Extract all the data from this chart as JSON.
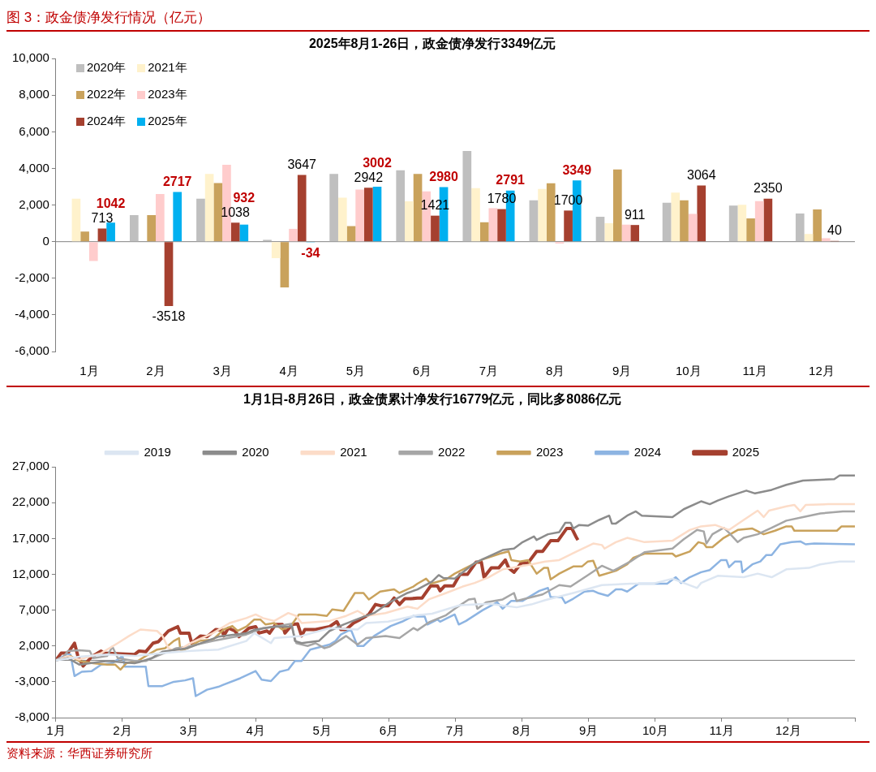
{
  "chart_data": [
    {
      "type": "bar",
      "title": "2025年8月1-26日，政金债净发行3349亿元",
      "annotations": [
        "图 3：政金债净发行情况（亿元）"
      ],
      "categories": [
        "1月",
        "2月",
        "3月",
        "4月",
        "5月",
        "6月",
        "7月",
        "8月",
        "9月",
        "10月",
        "11月",
        "12月"
      ],
      "series": [
        {
          "name": "2020年",
          "color": "#bfbfbf",
          "values": [
            null,
            1450,
            2350,
            100,
            3700,
            3900,
            4950,
            2260,
            1360,
            2130,
            1970,
            1540
          ]
        },
        {
          "name": "2021年",
          "color": "#fff2cc",
          "values": [
            2350,
            null,
            3700,
            -900,
            2400,
            2200,
            2930,
            2880,
            1010,
            2680,
            2020,
            420
          ]
        },
        {
          "name": "2022年",
          "color": "#c9a25c",
          "values": [
            550,
            1450,
            3200,
            -2500,
            850,
            3700,
            1060,
            3190,
            3940,
            2260,
            1270,
            1760
          ]
        },
        {
          "name": "2023年",
          "color": "#ffcccc",
          "values": [
            -1050,
            2600,
            4200,
            700,
            2850,
            2750,
            1830,
            -100,
            930,
            1520,
            2210,
            190
          ]
        },
        {
          "name": "2024年",
          "color": "#a5402f",
          "values": [
            713,
            -3518,
            1038,
            3647,
            2942,
            1421,
            1780,
            1700,
            911,
            3064,
            2350,
            40
          ],
          "value_labels": [
            "713",
            "-3518",
            "1038",
            "3647",
            "2942",
            "1421",
            "1780",
            "1700",
            "911",
            "3064",
            "2350",
            "40"
          ]
        },
        {
          "name": "2025年",
          "color": "#00b0f0",
          "values": [
            1042,
            2717,
            932,
            -34,
            3002,
            2980,
            2791,
            3349,
            null,
            null,
            null,
            null
          ],
          "value_labels": [
            "1042",
            "2717",
            "932",
            "-34",
            "3002",
            "2980",
            "2791",
            "3349",
            null,
            null,
            null,
            null
          ]
        }
      ],
      "ylim": [
        -6000,
        10000
      ],
      "yticks": [
        {
          "value": -6000,
          "label": "-6,000"
        },
        {
          "value": -4000,
          "label": "-4,000"
        },
        {
          "value": -2000,
          "label": "-2,000"
        },
        0,
        {
          "value": 2000,
          "label": "2,000"
        },
        {
          "value": 4000,
          "label": "4,000"
        },
        {
          "value": 6000,
          "label": "6,000"
        },
        {
          "value": 8000,
          "label": "8,000"
        },
        {
          "value": 10000,
          "label": "10,000"
        }
      ],
      "ref_lines": [
        {
          "axis": "y",
          "value": 0,
          "color": "#808080"
        }
      ],
      "grid": false,
      "legend": "top left"
    },
    {
      "type": "line",
      "title": "1月1日-8月26日，政金债累计净发行16779亿元，同比多8086亿元",
      "annotations": [
        "资料来源：华西证券研究所"
      ],
      "series": [
        {
          "name": "2019",
          "color": "#dce6f2",
          "x": [
            1.0,
            1.35,
            1.77,
            2.18,
            2.6,
            2.98,
            3.44,
            3.86,
            3.98,
            4.23,
            4.28,
            4.69,
            5.11,
            5.53,
            5.66,
            5.99,
            6.43,
            6.65,
            7.07,
            7.5,
            7.92,
            8.14,
            8.35,
            8.77,
            9.2,
            9.63,
            9.97,
            10.26,
            10.63,
            10.69,
            10.94,
            11.33,
            11.54,
            11.75,
            11.97,
            12.31,
            12.48,
            12.77,
            13.0
          ],
          "values": [
            0,
            500,
            800,
            600,
            1000,
            1300,
            1500,
            2700,
            3800,
            2400,
            3100,
            3400,
            4500,
            4300,
            5200,
            5400,
            6300,
            6500,
            7700,
            7900,
            7400,
            7800,
            8400,
            9400,
            10500,
            10700,
            10700,
            11400,
            10100,
            10800,
            11800,
            11600,
            12100,
            11600,
            12700,
            12900,
            13400,
            13800,
            13800
          ]
        },
        {
          "name": "2020",
          "color": "#8c8c8c",
          "x": [
            1.0,
            1.18,
            1.35,
            1.51,
            1.77,
            2.18,
            2.27,
            2.44,
            2.6,
            2.98,
            3.44,
            3.86,
            4.0,
            4.28,
            4.55,
            4.59,
            4.69,
            4.95,
            5.11,
            5.32,
            5.57,
            5.78,
            6.03,
            6.28,
            6.43,
            6.65,
            6.75,
            6.82,
            6.99,
            7.29,
            7.71,
            7.88,
            8.01,
            8.18,
            8.22,
            8.39,
            8.56,
            8.65,
            8.73,
            8.77,
            8.86,
            8.99,
            9.16,
            9.31,
            9.35,
            9.41,
            9.58,
            9.71,
            9.8,
            10.26,
            10.43,
            10.69,
            10.82,
            10.94,
            11.11,
            11.37,
            11.5,
            11.75,
            11.97,
            12.22,
            12.69,
            12.77,
            13.0
          ],
          "values": [
            0,
            300,
            -600,
            -400,
            -100,
            -400,
            -200,
            300,
            1200,
            1700,
            3300,
            3800,
            4300,
            4700,
            4700,
            2700,
            2400,
            2700,
            4100,
            5000,
            5900,
            6600,
            8200,
            9400,
            9900,
            11000,
            11900,
            11500,
            11400,
            13600,
            15400,
            15600,
            16500,
            17300,
            16800,
            17600,
            17900,
            19200,
            19200,
            18400,
            18900,
            18800,
            19600,
            20200,
            19100,
            19100,
            20200,
            20800,
            20200,
            20000,
            21100,
            22200,
            21800,
            22300,
            22900,
            23700,
            23300,
            23800,
            24500,
            25100,
            25300,
            25800,
            25800
          ]
        },
        {
          "name": "2021",
          "color": "#fcdcc8",
          "x": [
            1.0,
            1.18,
            1.35,
            1.68,
            1.93,
            2.1,
            2.27,
            2.52,
            2.6,
            2.69,
            2.81,
            3.02,
            3.36,
            3.61,
            3.86,
            4.0,
            4.11,
            4.28,
            4.49,
            4.61,
            4.69,
            5.11,
            5.36,
            5.53,
            5.66,
            5.95,
            6.28,
            6.43,
            6.6,
            6.86,
            7.11,
            7.29,
            7.5,
            7.71,
            8.14,
            8.35,
            8.56,
            8.82,
            9.07,
            9.2,
            9.24,
            9.41,
            9.58,
            9.84,
            10.26,
            10.52,
            10.69,
            10.9,
            11.11,
            11.33,
            11.54,
            11.63,
            11.71,
            11.97,
            12.09,
            12.18,
            12.26,
            12.6,
            13.0
          ],
          "values": [
            0,
            600,
            100,
            1000,
            2400,
            3400,
            4300,
            4100,
            3400,
            1700,
            1200,
            2400,
            3800,
            5200,
            5900,
            6400,
            5900,
            5500,
            6600,
            6200,
            5200,
            5500,
            6200,
            6900,
            6200,
            6600,
            7500,
            7200,
            8500,
            9400,
            10300,
            10800,
            11600,
            12700,
            13400,
            13800,
            14000,
            15200,
            16300,
            16100,
            15600,
            16500,
            17100,
            16500,
            16700,
            18200,
            18700,
            18900,
            18200,
            19600,
            20900,
            20000,
            20900,
            21500,
            21700,
            20800,
            21700,
            21800,
            21800
          ]
        },
        {
          "name": "2022",
          "color": "#a6a6a6",
          "x": [
            1.0,
            1.1,
            1.18,
            1.35,
            1.51,
            1.56,
            1.77,
            1.85,
            1.93,
            2.18,
            2.35,
            2.52,
            2.81,
            2.98,
            3.36,
            3.86,
            4.11,
            4.28,
            4.53,
            4.61,
            4.78,
            4.9,
            5.03,
            5.11,
            5.36,
            5.53,
            5.66,
            5.95,
            6.16,
            6.37,
            6.43,
            6.6,
            6.86,
            6.99,
            7.2,
            7.29,
            7.33,
            7.46,
            7.71,
            7.88,
            7.92,
            8.05,
            8.31,
            8.56,
            8.73,
            8.99,
            9.2,
            9.37,
            9.63,
            9.84,
            10.26,
            10.43,
            10.63,
            10.73,
            10.77,
            10.86,
            11.03,
            11.11,
            11.24,
            11.33,
            11.54,
            11.75,
            11.97,
            12.22,
            12.48,
            12.82,
            13.0
          ],
          "values": [
            0,
            300,
            1300,
            1400,
            1300,
            300,
            600,
            1900,
            300,
            -100,
            -100,
            600,
            1700,
            1900,
            2700,
            3600,
            4500,
            4700,
            5100,
            2400,
            2000,
            2400,
            1700,
            1900,
            3400,
            2200,
            3100,
            3400,
            3100,
            4500,
            4200,
            5300,
            6300,
            7200,
            8500,
            8600,
            7200,
            8100,
            8500,
            9400,
            8300,
            8600,
            9200,
            10500,
            10300,
            11900,
            13200,
            12500,
            13800,
            15100,
            15600,
            16900,
            18200,
            18000,
            16300,
            17600,
            18500,
            17800,
            16500,
            17100,
            17600,
            18500,
            19500,
            20000,
            20500,
            20800,
            20800
          ]
        },
        {
          "name": "2023",
          "color": "#c9a25c",
          "x": [
            1.0,
            1.1,
            1.22,
            1.35,
            1.56,
            1.77,
            1.89,
            1.97,
            2.06,
            2.23,
            2.35,
            2.52,
            2.64,
            2.77,
            2.85,
            2.87,
            2.98,
            3.15,
            3.36,
            3.52,
            3.65,
            3.73,
            3.86,
            3.98,
            4.07,
            4.15,
            4.28,
            4.4,
            4.53,
            4.65,
            4.9,
            5.07,
            5.15,
            5.32,
            5.49,
            5.62,
            5.7,
            5.87,
            6.08,
            6.16,
            6.37,
            6.43,
            6.56,
            6.63,
            6.86,
            6.99,
            7.2,
            7.41,
            7.67,
            7.8,
            7.84,
            7.97,
            8.09,
            8.22,
            8.33,
            8.39,
            8.43,
            8.56,
            8.77,
            8.9,
            8.99,
            9.07,
            9.16,
            9.41,
            9.58,
            9.67,
            9.84,
            10.26,
            10.31,
            10.52,
            10.65,
            10.73,
            10.77,
            10.86,
            11.03,
            11.24,
            11.46,
            11.63,
            11.8,
            11.97,
            12.05,
            12.09,
            12.73,
            12.8,
            13.0
          ],
          "values": [
            0,
            300,
            600,
            -100,
            -400,
            -600,
            -600,
            -1300,
            -400,
            -100,
            600,
            1500,
            1700,
            2700,
            3100,
            1300,
            1700,
            2700,
            2900,
            4300,
            4800,
            4100,
            4700,
            5700,
            5700,
            5000,
            5200,
            4300,
            4800,
            6400,
            6400,
            6200,
            7100,
            6900,
            9400,
            9400,
            8500,
            9600,
            9900,
            9400,
            10300,
            10700,
            11400,
            10700,
            11300,
            12100,
            13100,
            14100,
            14900,
            15200,
            14000,
            13800,
            14000,
            12100,
            12900,
            12900,
            11300,
            12100,
            13100,
            13100,
            13800,
            13900,
            11800,
            12500,
            13400,
            14300,
            14900,
            14900,
            14500,
            15200,
            16500,
            16300,
            15800,
            15800,
            17100,
            18200,
            18400,
            17600,
            18100,
            18700,
            18700,
            18100,
            18100,
            18700,
            18700
          ]
        },
        {
          "name": "2024",
          "color": "#8db4e2",
          "x": [
            1.0,
            1.16,
            1.22,
            1.28,
            1.39,
            1.54,
            1.68,
            1.85,
            2.0,
            2.04,
            2.35,
            2.39,
            2.6,
            2.77,
            2.94,
            3.06,
            3.1,
            3.27,
            3.44,
            3.52,
            3.77,
            4.0,
            4.09,
            4.23,
            4.36,
            4.49,
            4.59,
            4.69,
            4.82,
            5.11,
            5.2,
            5.28,
            5.43,
            5.53,
            5.62,
            5.78,
            6.03,
            6.2,
            6.37,
            6.43,
            6.54,
            6.58,
            6.73,
            6.77,
            6.99,
            7.05,
            7.16,
            7.41,
            7.63,
            7.71,
            7.84,
            8.01,
            8.26,
            8.39,
            8.43,
            8.6,
            8.65,
            8.77,
            8.94,
            9.07,
            9.14,
            9.29,
            9.41,
            9.5,
            9.58,
            9.75,
            10.18,
            10.31,
            10.39,
            10.52,
            10.69,
            10.82,
            10.99,
            11.07,
            11.11,
            11.2,
            11.29,
            11.31,
            11.46,
            11.58,
            11.67,
            11.75,
            11.88,
            12.05,
            12.18,
            12.26,
            12.39,
            13.0
          ],
          "values": [
            0,
            800,
            800,
            -2200,
            -1600,
            -1500,
            -600,
            -400,
            600,
            -900,
            -900,
            -3600,
            -3600,
            -3000,
            -2800,
            -2500,
            -5000,
            -4100,
            -3700,
            -3400,
            -2500,
            -1500,
            -2700,
            -2900,
            -1600,
            -1300,
            -100,
            -100,
            1500,
            2200,
            2700,
            3600,
            4300,
            2000,
            2000,
            3400,
            4800,
            5400,
            6200,
            6100,
            6100,
            5000,
            5700,
            5400,
            6400,
            5000,
            5500,
            7000,
            8100,
            7200,
            8300,
            8300,
            9700,
            10100,
            8800,
            8800,
            8000,
            8600,
            9600,
            9700,
            9400,
            9000,
            9900,
            9900,
            9600,
            10700,
            10700,
            11600,
            10800,
            11600,
            12300,
            12600,
            14000,
            14000,
            13000,
            13800,
            13800,
            12300,
            13400,
            13800,
            14700,
            14700,
            16200,
            16500,
            16600,
            16200,
            16300,
            16200
          ]
        },
        {
          "name": "2025",
          "color": "#a5402f",
          "x": [
            1.0,
            1.08,
            1.18,
            1.28,
            1.33,
            1.41,
            1.54,
            1.68,
            1.72,
            2.18,
            2.25,
            2.35,
            2.46,
            2.54,
            2.69,
            2.83,
            2.87,
            3.0,
            3.04,
            3.17,
            3.27,
            3.4,
            3.5,
            3.52,
            3.59,
            3.69,
            3.75,
            3.9,
            4.0,
            4.05,
            4.17,
            4.21,
            4.3,
            4.4,
            4.44,
            4.55,
            4.63,
            4.69,
            4.74,
            4.9,
            5.11,
            5.22,
            5.28,
            5.36,
            5.47,
            5.57,
            5.7,
            5.8,
            5.89,
            5.99,
            6.08,
            6.16,
            6.24,
            6.33,
            6.43,
            6.5,
            6.63,
            6.73,
            6.77,
            6.84,
            6.97,
            7.07,
            7.18,
            7.31,
            7.39,
            7.43,
            7.54,
            7.65,
            7.75,
            7.8,
            7.88,
            7.99,
            8.09,
            8.22,
            8.31,
            8.43,
            8.54,
            8.67,
            8.75,
            8.82,
            8.84
          ],
          "values": [
            0,
            1000,
            1000,
            2400,
            600,
            -800,
            500,
            1300,
            1000,
            800,
            1300,
            1200,
            2400,
            2600,
            4100,
            4700,
            3800,
            3800,
            2400,
            3400,
            3300,
            4300,
            4200,
            3400,
            4500,
            4100,
            3300,
            4500,
            4700,
            3800,
            4100,
            3800,
            5000,
            5000,
            3800,
            5000,
            5100,
            3400,
            4300,
            4300,
            4700,
            5400,
            4300,
            4300,
            5200,
            5700,
            6400,
            7800,
            7600,
            7600,
            8700,
            7800,
            8600,
            8600,
            8700,
            8700,
            10400,
            10400,
            9700,
            10400,
            10400,
            12000,
            12000,
            13700,
            13700,
            11600,
            12900,
            12900,
            14000,
            12900,
            12300,
            13600,
            13600,
            15200,
            15200,
            16700,
            16700,
            18400,
            18400,
            17100,
            16800
          ]
        }
      ],
      "xlim": [
        1,
        13
      ],
      "xticks": [
        {
          "value": 1,
          "label": "1月"
        },
        {
          "value": 2,
          "label": "2月"
        },
        {
          "value": 3,
          "label": "3月"
        },
        {
          "value": 4,
          "label": "4月"
        },
        {
          "value": 5,
          "label": "5月"
        },
        {
          "value": 6,
          "label": "6月"
        },
        {
          "value": 7,
          "label": "7月"
        },
        {
          "value": 8,
          "label": "8月"
        },
        {
          "value": 9,
          "label": "9月"
        },
        {
          "value": 10,
          "label": "10月"
        },
        {
          "value": 11,
          "label": "11月"
        },
        {
          "value": 12,
          "label": "12月"
        },
        {
          "value": 13,
          "label": null
        }
      ],
      "ylim": [
        -8000,
        27000
      ],
      "yticks": [
        {
          "value": -8000,
          "label": "-8,000"
        },
        {
          "value": -3000,
          "label": "-3,000"
        },
        {
          "value": 2000,
          "label": "2,000"
        },
        {
          "value": 7000,
          "label": "7,000"
        },
        {
          "value": 12000,
          "label": "12,000"
        },
        {
          "value": 17000,
          "label": "17,000"
        },
        {
          "value": 22000,
          "label": "22,000"
        },
        {
          "value": 27000,
          "label": "27,000"
        }
      ],
      "ref_lines": [
        {
          "axis": "y",
          "value": 0,
          "color": "#808080"
        }
      ],
      "grid": false,
      "legend": "top",
      "marker": "none",
      "line_style": "solid"
    }
  ]
}
